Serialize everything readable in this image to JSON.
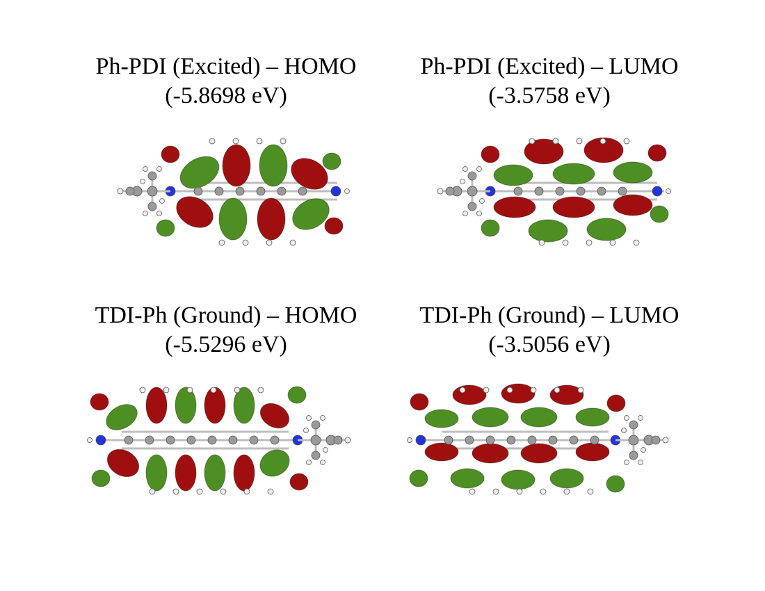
{
  "panels": [
    {
      "title_line1": "Ph-PDI (Excited) – HOMO",
      "title_line2": "(-5.8698 eV)",
      "molecule": "Ph-PDI",
      "orbital": "HOMO",
      "energy_eV": -5.8698
    },
    {
      "title_line1": "Ph-PDI (Excited) – LUMO",
      "title_line2": "(-3.5758 eV)",
      "molecule": "Ph-PDI",
      "orbital": "LUMO",
      "energy_eV": -3.5758
    },
    {
      "title_line1": "TDI-Ph (Ground) – HOMO",
      "title_line2": "(-5.5296 eV)",
      "molecule": "TDI-Ph",
      "orbital": "HOMO",
      "energy_eV": -5.5296
    },
    {
      "title_line1": "TDI-Ph (Ground) – LUMO",
      "title_line2": "(-3.5056 eV)",
      "molecule": "TDI-Ph",
      "orbital": "LUMO",
      "energy_eV": -3.5056
    }
  ],
  "colors": {
    "lobe_positive": "#a00f0f",
    "lobe_negative": "#4e8f23",
    "carbon": "#9a9a9a",
    "hydrogen": "#eeeeee",
    "nitrogen": "#2233dd"
  }
}
